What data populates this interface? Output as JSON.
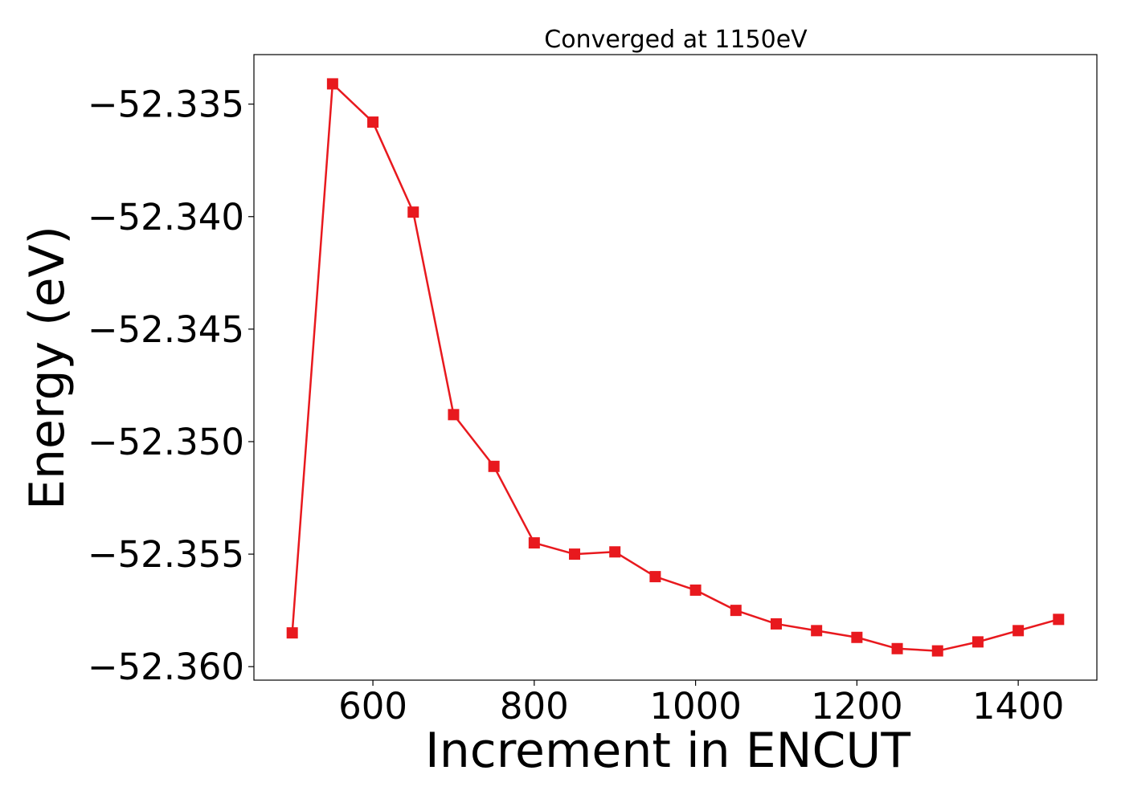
{
  "chart_data": {
    "type": "line",
    "title": "Converged at 1150eV",
    "xlabel": "Increment in ENCUT",
    "ylabel": "Energy (eV)",
    "xlim": [
      452.5,
      1497.5
    ],
    "ylim": [
      -52.3606,
      -52.3328
    ],
    "xticks": [
      600,
      800,
      1000,
      1200,
      1400
    ],
    "xtick_labels": [
      "600",
      "800",
      "1000",
      "1200",
      "1400"
    ],
    "yticks": [
      -52.36,
      -52.355,
      -52.35,
      -52.345,
      -52.34,
      -52.335
    ],
    "ytick_labels": [
      "−52.360",
      "−52.355",
      "−52.350",
      "−52.345",
      "−52.340",
      "−52.335"
    ],
    "grid": false,
    "series": [
      {
        "color": "#e8191e",
        "marker": "square",
        "x": [
          500,
          550,
          600,
          650,
          700,
          750,
          800,
          850,
          900,
          950,
          1000,
          1050,
          1100,
          1150,
          1200,
          1250,
          1300,
          1350,
          1400,
          1450
        ],
        "y": [
          -52.3585,
          -52.3341,
          -52.3358,
          -52.3398,
          -52.3488,
          -52.3511,
          -52.3545,
          -52.355,
          -52.3549,
          -52.356,
          -52.3566,
          -52.3575,
          -52.3581,
          -52.3584,
          -52.3587,
          -52.3592,
          -52.3593,
          -52.3589,
          -52.3584,
          -52.3579
        ]
      }
    ]
  }
}
